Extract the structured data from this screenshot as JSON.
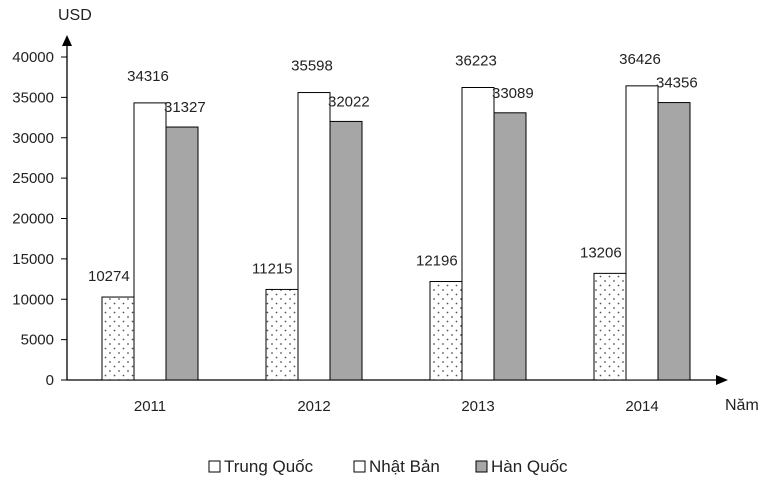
{
  "chart_data": {
    "type": "bar",
    "ylabel": "USD",
    "xlabel": "Năm",
    "categories": [
      "2011",
      "2012",
      "2013",
      "2014"
    ],
    "series": [
      {
        "name": "Trung Quốc",
        "values": [
          10274,
          11215,
          12196,
          13206
        ],
        "fill": "#ffffff",
        "pattern": "dotted"
      },
      {
        "name": "Nhật Bản",
        "values": [
          34316,
          35598,
          36223,
          36426
        ],
        "fill": "#ffffff",
        "pattern": "none"
      },
      {
        "name": "Hàn Quốc",
        "values": [
          31327,
          32022,
          33089,
          34356
        ],
        "fill": "#a6a6a6",
        "pattern": "none"
      }
    ],
    "yticks": [
      0,
      5000,
      10000,
      15000,
      20000,
      25000,
      30000,
      35000,
      40000
    ],
    "ylim": [
      0,
      40000
    ],
    "grid": false,
    "legend": "bottom"
  }
}
